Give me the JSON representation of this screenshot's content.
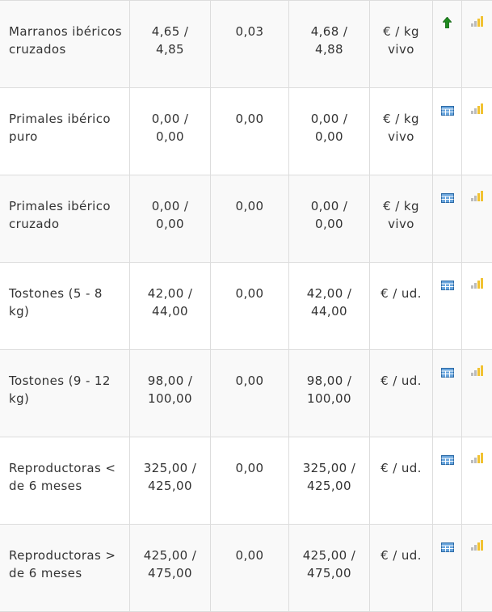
{
  "colors": {
    "border": "#dddddd",
    "row_alt": "#f9f9f9",
    "text": "#333333",
    "trend_up": "#1f8a1f",
    "table_icon": "#3f86c6",
    "bars_gray": "#bbbbbb",
    "bars_yellow": "#f1c232"
  },
  "rows": [
    {
      "product": "Marranos ibéricos cruzados",
      "previous": "4,65 / 4,85",
      "change": "0,03",
      "current": "4,68 / 4,88",
      "unit": "€ / kg vivo",
      "trend_icon": "arrow-up-icon",
      "graph_icon": "bar-chart-icon"
    },
    {
      "product": "Primales ibérico puro",
      "previous": "0,00 / 0,00",
      "change": "0,00",
      "current": "0,00 / 0,00",
      "unit": "€ / kg vivo",
      "trend_icon": "table-icon",
      "graph_icon": "bar-chart-icon"
    },
    {
      "product": "Primales ibérico cruzado",
      "previous": "0,00 / 0,00",
      "change": "0,00",
      "current": "0,00 / 0,00",
      "unit": "€ / kg vivo",
      "trend_icon": "table-icon",
      "graph_icon": "bar-chart-icon"
    },
    {
      "product": "Tostones (5 - 8 kg)",
      "previous": "42,00 / 44,00",
      "change": "0,00",
      "current": "42,00 / 44,00",
      "unit": "€ / ud.",
      "trend_icon": "table-icon",
      "graph_icon": "bar-chart-icon"
    },
    {
      "product": "Tostones (9 - 12 kg)",
      "previous": "98,00 / 100,00",
      "change": "0,00",
      "current": "98,00 / 100,00",
      "unit": "€ / ud.",
      "trend_icon": "table-icon",
      "graph_icon": "bar-chart-icon"
    },
    {
      "product": "Reproductoras < de 6 meses",
      "previous": "325,00 / 425,00",
      "change": "0,00",
      "current": "325,00 / 425,00",
      "unit": "€ / ud.",
      "trend_icon": "table-icon",
      "graph_icon": "bar-chart-icon"
    },
    {
      "product": "Reproductoras > de 6 meses",
      "previous": "425,00 / 475,00",
      "change": "0,00",
      "current": "425,00 / 475,00",
      "unit": "€ / ud.",
      "trend_icon": "table-icon",
      "graph_icon": "bar-chart-icon"
    }
  ]
}
